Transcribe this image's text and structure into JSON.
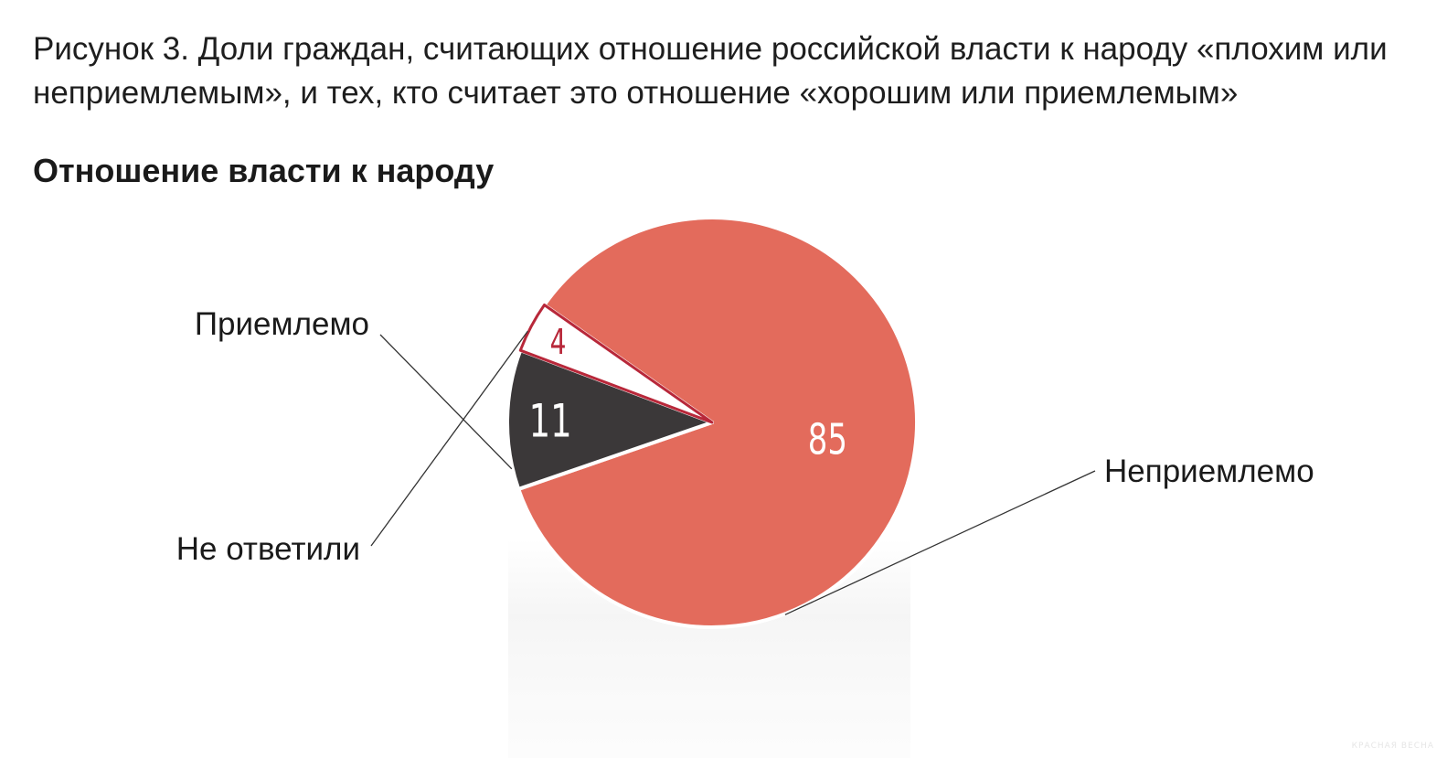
{
  "figure_caption": "Рисунок 3. Доли граждан, считающих отношение российской власти к народу «плохим или неприемлемым», и тех, кто считает это отношение «хорошим или приемлемым»",
  "watermark": "КРАСНАЯ ВЕСНА",
  "chart_data": {
    "type": "pie",
    "title": "Отношение власти к народу",
    "unit": "%",
    "slices": [
      {
        "label": "Неприемлемо",
        "value": 85,
        "color": "#e36b5c",
        "value_color": "#ffffff"
      },
      {
        "label": "Приемлемо",
        "value": 11,
        "color": "#3b3839",
        "value_color": "#ffffff"
      },
      {
        "label": "Не ответили",
        "value": 4,
        "color": "#ffffff",
        "stroke": "#b8283a",
        "value_color": "#b8283a"
      }
    ]
  }
}
